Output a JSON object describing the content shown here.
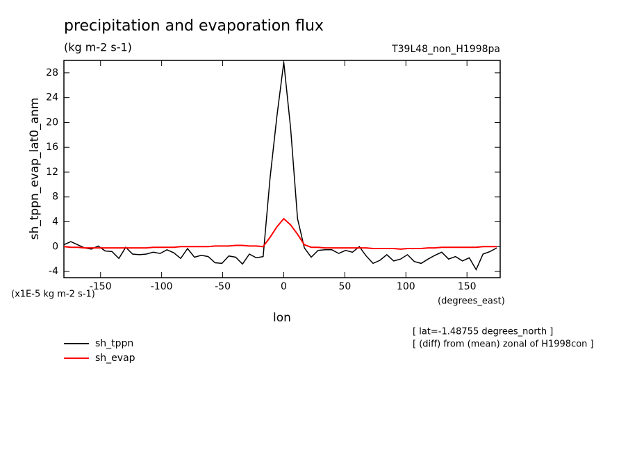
{
  "chart_data": {
    "type": "line",
    "title": "precipitation and evaporation flux",
    "subtitle": "(kg m-2 s-1)",
    "experiment": "T39L48_non_H1998pa",
    "ylabel": "sh_tppn_evap_lat0_anm",
    "yunits": "(x1E-5 kg m-2 s-1)",
    "xunits": "(degrees_east)",
    "xlabel": "lon",
    "annotations": [
      "[ lat=-1.48755 degrees_north ]",
      "[ (diff) from (mean) zonal of H1998con ]"
    ],
    "x": [
      -180,
      -174.375,
      -168.75,
      -163.125,
      -157.5,
      -151.875,
      -146.25,
      -140.625,
      -135,
      -129.375,
      -123.75,
      -118.125,
      -112.5,
      -106.875,
      -101.25,
      -95.625,
      -90,
      -84.375,
      -78.75,
      -73.125,
      -67.5,
      -61.875,
      -56.25,
      -50.625,
      -45,
      -39.375,
      -33.75,
      -28.125,
      -22.5,
      -16.875,
      -11.25,
      -5.625,
      0,
      5.625,
      11.25,
      16.875,
      22.5,
      28.125,
      33.75,
      39.375,
      45,
      50.625,
      56.25,
      61.875,
      67.5,
      73.125,
      78.75,
      84.375,
      90,
      95.625,
      101.25,
      106.875,
      112.5,
      118.125,
      123.75,
      129.375,
      135,
      140.625,
      146.25,
      151.875,
      157.5,
      163.125,
      168.75,
      174.375
    ],
    "series": [
      {
        "name": "sh_tppn",
        "color": "#000000",
        "values": [
          0.3,
          0.8,
          0.3,
          -0.2,
          -0.4,
          0.1,
          -0.7,
          -0.8,
          -1.9,
          -0.1,
          -1.2,
          -1.3,
          -1.2,
          -0.9,
          -1.1,
          -0.5,
          -1.0,
          -1.9,
          -0.3,
          -1.7,
          -1.4,
          -1.6,
          -2.6,
          -2.7,
          -1.5,
          -1.7,
          -2.8,
          -1.2,
          -1.8,
          -1.6,
          11,
          21,
          29.7,
          19,
          4.5,
          -0.2,
          -1.7,
          -0.6,
          -0.5,
          -0.5,
          -1.1,
          -0.6,
          -0.9,
          0,
          -1.5,
          -2.7,
          -2.2,
          -1.3,
          -2.3,
          -2.0,
          -1.3,
          -2.4,
          -2.7,
          -2.0,
          -1.4,
          -0.9,
          -2.0,
          -1.6,
          -2.3,
          -1.8,
          -3.7,
          -1.2,
          -0.8,
          -0.2
        ]
      },
      {
        "name": "sh_evap",
        "color": "#ff0000",
        "values": [
          0,
          -0.1,
          -0.1,
          -0.2,
          -0.2,
          -0.2,
          -0.2,
          -0.2,
          -0.2,
          -0.2,
          -0.2,
          -0.2,
          -0.2,
          -0.1,
          -0.1,
          -0.1,
          -0.1,
          0,
          0,
          0,
          0,
          0,
          0.1,
          0.1,
          0.1,
          0.2,
          0.2,
          0.1,
          0.1,
          0,
          1.5,
          3.2,
          4.5,
          3.5,
          2.0,
          0.3,
          -0.1,
          -0.1,
          -0.2,
          -0.2,
          -0.2,
          -0.2,
          -0.2,
          -0.2,
          -0.2,
          -0.3,
          -0.3,
          -0.3,
          -0.3,
          -0.4,
          -0.3,
          -0.3,
          -0.3,
          -0.2,
          -0.2,
          -0.1,
          -0.1,
          -0.1,
          -0.1,
          -0.1,
          -0.1,
          0,
          0,
          0
        ]
      }
    ],
    "xlim": [
      -180,
      177.1875
    ],
    "ylim": [
      -5,
      30
    ],
    "xticks": [
      -150,
      -100,
      -50,
      0,
      50,
      100,
      150
    ],
    "yticks": [
      -4,
      0,
      4,
      8,
      12,
      16,
      20,
      24,
      28
    ]
  }
}
